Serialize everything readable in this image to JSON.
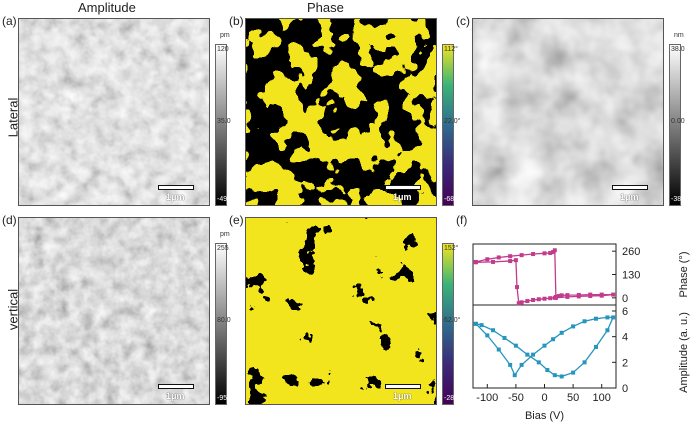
{
  "headers": {
    "amplitude": "Amplitude",
    "phase": "Phase"
  },
  "row_labels": {
    "lateral": "Lateral",
    "vertical": "vertical"
  },
  "panels": {
    "a": "(a)",
    "b": "(b)",
    "c": "(c)",
    "d": "(d)",
    "e": "(e)",
    "f": "(f)"
  },
  "scalebar": "1μm",
  "colorbars": {
    "a": {
      "unit": "pm",
      "max": "120",
      "mid": "35.0",
      "min": "-49.5"
    },
    "b": {
      "unit": "",
      "max": "112°",
      "mid": "22.0°",
      "min": "-68.0°"
    },
    "c": {
      "unit": "nm",
      "max": "38.0",
      "mid": "0.00",
      "min": "-38.0"
    },
    "d": {
      "unit": "pm",
      "max": "255",
      "mid": "80.0",
      "min": "-95.0"
    },
    "e": {
      "unit": "",
      "max": "152°",
      "mid": "62.0°",
      "min": "-28.0°"
    }
  },
  "colors": {
    "phase_yellow": "#f2e51d",
    "phase_blue": "#2f6c8e",
    "loop": "#c23b8c",
    "amp": "#2596be"
  },
  "chart_data": {
    "type": "line",
    "xlabel": "Bias (V)",
    "xticks": [
      "-100",
      "-50",
      "0",
      "50",
      "100"
    ],
    "xlim": [
      -125,
      125
    ],
    "phase": {
      "ylabel": "Phase (°)",
      "yticks": [
        "260",
        "130",
        "0"
      ],
      "ylim": [
        -40,
        300
      ],
      "x": [
        -120,
        -90,
        -60,
        -50,
        -48,
        -45,
        -40,
        -30,
        -20,
        -10,
        0,
        10,
        18,
        20,
        25,
        30,
        40,
        60,
        80,
        100,
        120,
        100,
        80,
        60,
        40,
        20,
        18,
        15,
        10,
        0,
        -20,
        -40,
        -60,
        -80,
        -100,
        -120
      ],
      "y": [
        198,
        200,
        205,
        210,
        60,
        -30,
        -25,
        -18,
        -12,
        -8,
        -5,
        -2,
        0,
        5,
        10,
        14,
        15,
        16,
        18,
        18,
        18,
        12,
        10,
        8,
        5,
        0,
        265,
        255,
        250,
        248,
        244,
        238,
        232,
        225,
        215,
        200
      ]
    },
    "amplitude": {
      "ylabel": "Amplitude (a. u.)",
      "yticks": [
        "0",
        "2",
        "4",
        "6"
      ],
      "ylim": [
        0,
        6
      ],
      "x": [
        -120,
        -100,
        -80,
        -60,
        -52,
        -40,
        -20,
        0,
        15,
        30,
        50,
        70,
        90,
        110,
        120,
        110,
        90,
        70,
        50,
        30,
        18,
        5,
        -10,
        -30,
        -50,
        -70,
        -90,
        -110,
        -120
      ],
      "y": [
        5.0,
        4.1,
        3.0,
        1.8,
        1.0,
        1.8,
        2.6,
        3.3,
        3.8,
        4.3,
        4.8,
        5.2,
        5.4,
        5.5,
        5.5,
        4.5,
        3.2,
        2.0,
        1.2,
        0.9,
        1.0,
        1.4,
        2.0,
        2.6,
        3.3,
        3.9,
        4.5,
        4.9,
        5.0
      ]
    }
  }
}
